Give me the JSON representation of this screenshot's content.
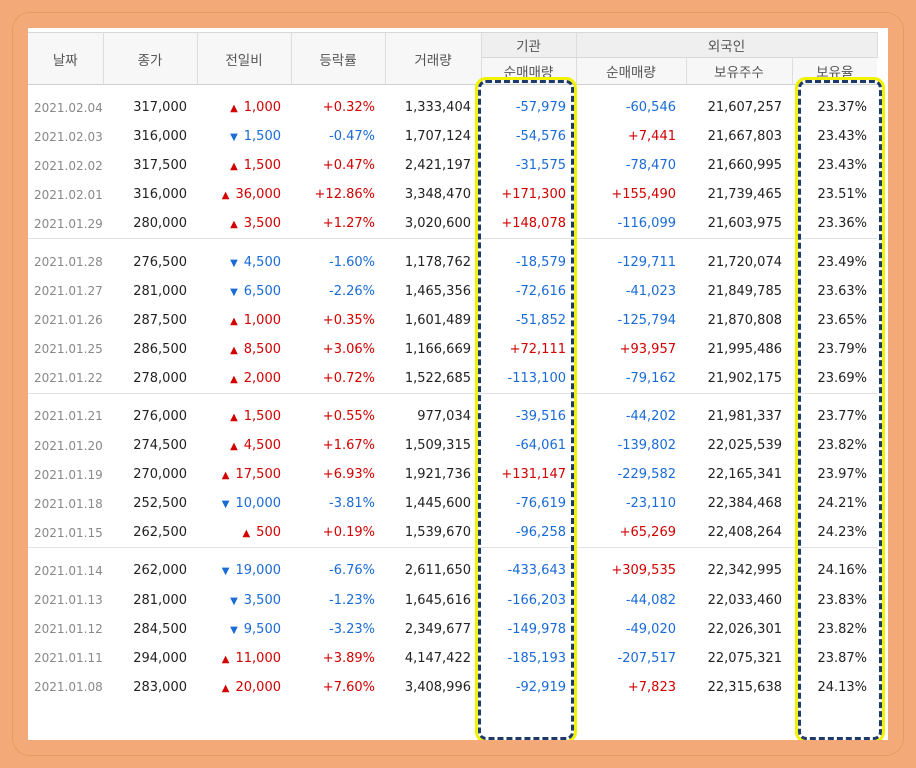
{
  "headers": {
    "date": "날짜",
    "close": "종가",
    "change": "전일비",
    "rate": "등락률",
    "volume": "거래량",
    "institution": "기관",
    "institution_net": "순매매량",
    "foreign": "외국인",
    "foreign_net": "순매매량",
    "foreign_shares": "보유주수",
    "foreign_ratio": "보유율"
  },
  "colors": {
    "up": "#d20000",
    "down": "#1a6bd6",
    "highlight_border": "#1d3a6b",
    "highlight_glow": "#f2f200",
    "frame": "#f4aa78"
  },
  "groups": [
    [
      {
        "date": "2021.02.04",
        "close": "317,000",
        "dir": "up",
        "change": "1,000",
        "rate": "+0.32%",
        "volume": "1,333,404",
        "inst": "-57,979",
        "fnet": "-60,546",
        "fshares": "21,607,257",
        "fratio": "23.37%"
      },
      {
        "date": "2021.02.03",
        "close": "316,000",
        "dir": "down",
        "change": "1,500",
        "rate": "-0.47%",
        "volume": "1,707,124",
        "inst": "-54,576",
        "fnet": "+7,441",
        "fshares": "21,667,803",
        "fratio": "23.43%"
      },
      {
        "date": "2021.02.02",
        "close": "317,500",
        "dir": "up",
        "change": "1,500",
        "rate": "+0.47%",
        "volume": "2,421,197",
        "inst": "-31,575",
        "fnet": "-78,470",
        "fshares": "21,660,995",
        "fratio": "23.43%"
      },
      {
        "date": "2021.02.01",
        "close": "316,000",
        "dir": "up",
        "change": "36,000",
        "rate": "+12.86%",
        "volume": "3,348,470",
        "inst": "+171,300",
        "fnet": "+155,490",
        "fshares": "21,739,465",
        "fratio": "23.51%"
      },
      {
        "date": "2021.01.29",
        "close": "280,000",
        "dir": "up",
        "change": "3,500",
        "rate": "+1.27%",
        "volume": "3,020,600",
        "inst": "+148,078",
        "fnet": "-116,099",
        "fshares": "21,603,975",
        "fratio": "23.36%"
      }
    ],
    [
      {
        "date": "2021.01.28",
        "close": "276,500",
        "dir": "down",
        "change": "4,500",
        "rate": "-1.60%",
        "volume": "1,178,762",
        "inst": "-18,579",
        "fnet": "-129,711",
        "fshares": "21,720,074",
        "fratio": "23.49%"
      },
      {
        "date": "2021.01.27",
        "close": "281,000",
        "dir": "down",
        "change": "6,500",
        "rate": "-2.26%",
        "volume": "1,465,356",
        "inst": "-72,616",
        "fnet": "-41,023",
        "fshares": "21,849,785",
        "fratio": "23.63%"
      },
      {
        "date": "2021.01.26",
        "close": "287,500",
        "dir": "up",
        "change": "1,000",
        "rate": "+0.35%",
        "volume": "1,601,489",
        "inst": "-51,852",
        "fnet": "-125,794",
        "fshares": "21,870,808",
        "fratio": "23.65%"
      },
      {
        "date": "2021.01.25",
        "close": "286,500",
        "dir": "up",
        "change": "8,500",
        "rate": "+3.06%",
        "volume": "1,166,669",
        "inst": "+72,111",
        "fnet": "+93,957",
        "fshares": "21,995,486",
        "fratio": "23.79%"
      },
      {
        "date": "2021.01.22",
        "close": "278,000",
        "dir": "up",
        "change": "2,000",
        "rate": "+0.72%",
        "volume": "1,522,685",
        "inst": "-113,100",
        "fnet": "-79,162",
        "fshares": "21,902,175",
        "fratio": "23.69%"
      }
    ],
    [
      {
        "date": "2021.01.21",
        "close": "276,000",
        "dir": "up",
        "change": "1,500",
        "rate": "+0.55%",
        "volume": "977,034",
        "inst": "-39,516",
        "fnet": "-44,202",
        "fshares": "21,981,337",
        "fratio": "23.77%"
      },
      {
        "date": "2021.01.20",
        "close": "274,500",
        "dir": "up",
        "change": "4,500",
        "rate": "+1.67%",
        "volume": "1,509,315",
        "inst": "-64,061",
        "fnet": "-139,802",
        "fshares": "22,025,539",
        "fratio": "23.82%"
      },
      {
        "date": "2021.01.19",
        "close": "270,000",
        "dir": "up",
        "change": "17,500",
        "rate": "+6.93%",
        "volume": "1,921,736",
        "inst": "+131,147",
        "fnet": "-229,582",
        "fshares": "22,165,341",
        "fratio": "23.97%"
      },
      {
        "date": "2021.01.18",
        "close": "252,500",
        "dir": "down",
        "change": "10,000",
        "rate": "-3.81%",
        "volume": "1,445,600",
        "inst": "-76,619",
        "fnet": "-23,110",
        "fshares": "22,384,468",
        "fratio": "24.21%"
      },
      {
        "date": "2021.01.15",
        "close": "262,500",
        "dir": "up",
        "change": "500",
        "rate": "+0.19%",
        "volume": "1,539,670",
        "inst": "-96,258",
        "fnet": "+65,269",
        "fshares": "22,408,264",
        "fratio": "24.23%"
      }
    ],
    [
      {
        "date": "2021.01.14",
        "close": "262,000",
        "dir": "down",
        "change": "19,000",
        "rate": "-6.76%",
        "volume": "2,611,650",
        "inst": "-433,643",
        "fnet": "+309,535",
        "fshares": "22,342,995",
        "fratio": "24.16%"
      },
      {
        "date": "2021.01.13",
        "close": "281,000",
        "dir": "down",
        "change": "3,500",
        "rate": "-1.23%",
        "volume": "1,645,616",
        "inst": "-166,203",
        "fnet": "-44,082",
        "fshares": "22,033,460",
        "fratio": "23.83%"
      },
      {
        "date": "2021.01.12",
        "close": "284,500",
        "dir": "down",
        "change": "9,500",
        "rate": "-3.23%",
        "volume": "2,349,677",
        "inst": "-149,978",
        "fnet": "-49,020",
        "fshares": "22,026,301",
        "fratio": "23.82%"
      },
      {
        "date": "2021.01.11",
        "close": "294,000",
        "dir": "up",
        "change": "11,000",
        "rate": "+3.89%",
        "volume": "4,147,422",
        "inst": "-185,193",
        "fnet": "-207,517",
        "fshares": "22,075,321",
        "fratio": "23.87%"
      },
      {
        "date": "2021.01.08",
        "close": "283,000",
        "dir": "up",
        "change": "20,000",
        "rate": "+7.60%",
        "volume": "3,408,996",
        "inst": "-92,919",
        "fnet": "+7,823",
        "fshares": "22,315,638",
        "fratio": "24.13%"
      }
    ]
  ]
}
